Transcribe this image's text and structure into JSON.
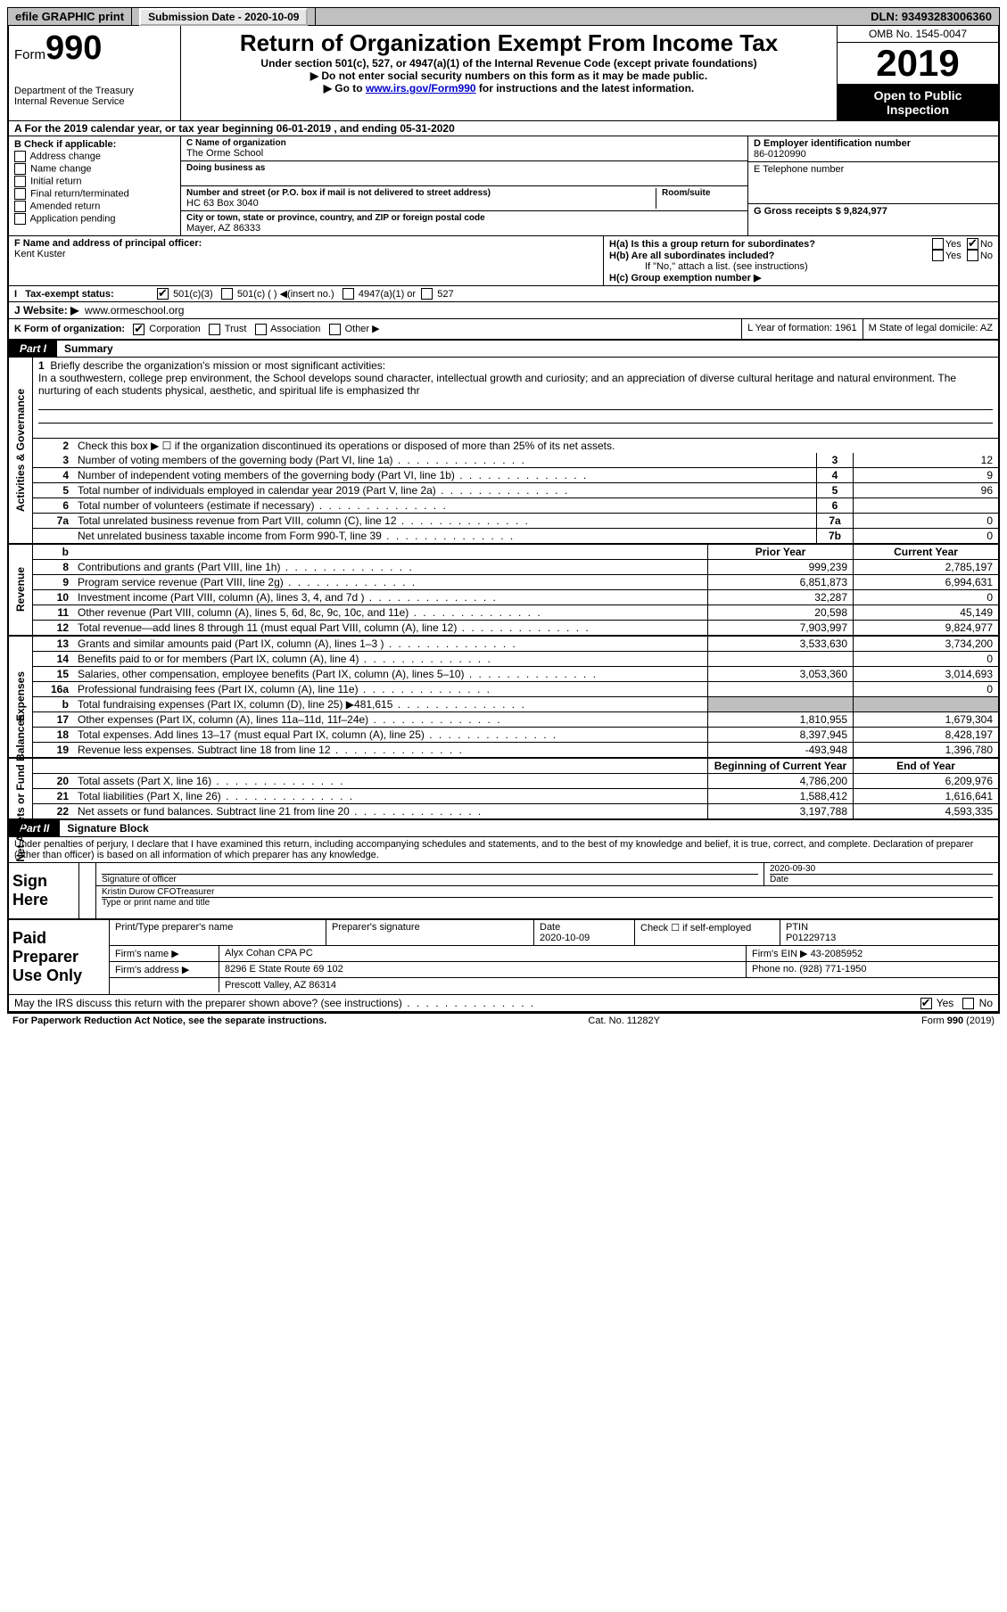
{
  "top": {
    "efile": "efile GRAPHIC print",
    "submission_label": "Submission Date - 2020-10-09",
    "dln": "DLN: 93493283006360"
  },
  "header": {
    "form_prefix": "Form",
    "form_number": "990",
    "dept1": "Department of the Treasury",
    "dept2": "Internal Revenue Service",
    "title": "Return of Organization Exempt From Income Tax",
    "subtitle": "Under section 501(c), 527, or 4947(a)(1) of the Internal Revenue Code (except private foundations)",
    "note1": "▶ Do not enter social security numbers on this form as it may be made public.",
    "note2_pre": "▶ Go to ",
    "note2_link": "www.irs.gov/Form990",
    "note2_post": " for instructions and the latest information.",
    "omb": "OMB No. 1545-0047",
    "year": "2019",
    "open1": "Open to Public",
    "open2": "Inspection"
  },
  "row_a": "A For the 2019 calendar year, or tax year beginning 06-01-2019   , and ending 05-31-2020",
  "col_b": {
    "head": "B Check if applicable:",
    "items": [
      "Address change",
      "Name change",
      "Initial return",
      "Final return/terminated",
      "Amended return",
      "Application pending"
    ]
  },
  "col_c": {
    "name_lbl": "C Name of organization",
    "name": "The Orme School",
    "dba_lbl": "Doing business as",
    "addr_lbl": "Number and street (or P.O. box if mail is not delivered to street address)",
    "addr": "HC 63 Box 3040",
    "room_lbl": "Room/suite",
    "city_lbl": "City or town, state or province, country, and ZIP or foreign postal code",
    "city": "Mayer, AZ  86333"
  },
  "col_de": {
    "d_lbl": "D Employer identification number",
    "d_val": "86-0120990",
    "e_lbl": "E Telephone number",
    "g_lbl": "G Gross receipts $ 9,824,977"
  },
  "sec_fh": {
    "f_lbl": "F  Name and address of principal officer:",
    "f_val": "Kent Kuster",
    "ha": "H(a)  Is this a group return for subordinates?",
    "hb": "H(b)  Are all subordinates included?",
    "hb_note": "If \"No,\" attach a list. (see instructions)",
    "hc": "H(c)  Group exemption number ▶"
  },
  "tax_row": {
    "lbl": "Tax-exempt status:",
    "o1": "501(c)(3)",
    "o2": "501(c) (  ) ◀(insert no.)",
    "o3": "4947(a)(1) or",
    "o4": "527"
  },
  "web_row": {
    "lbl": "J   Website: ▶",
    "val": "www.ormeschool.org"
  },
  "row_k": {
    "k_lbl": "K Form of organization:",
    "opts": [
      "Corporation",
      "Trust",
      "Association",
      "Other ▶"
    ],
    "l": "L Year of formation: 1961",
    "m": "M State of legal domicile: AZ"
  },
  "part1": {
    "tab": "Part I",
    "title": "Summary"
  },
  "mission": {
    "num": "1",
    "lbl": "Briefly describe the organization's mission or most significant activities:",
    "text": "In a southwestern, college prep environment, the School develops sound character, intellectual growth and curiosity; and an appreciation of diverse cultural heritage and natural environment. The nurturing of each students physical, aesthetic, and spiritual life is emphasized thr"
  },
  "line2": "Check this box ▶ ☐  if the organization discontinued its operations or disposed of more than 25% of its net assets.",
  "gov_lines": [
    {
      "n": "3",
      "d": "Number of voting members of the governing body (Part VI, line 1a)",
      "bn": "3",
      "v": "12"
    },
    {
      "n": "4",
      "d": "Number of independent voting members of the governing body (Part VI, line 1b)",
      "bn": "4",
      "v": "9"
    },
    {
      "n": "5",
      "d": "Total number of individuals employed in calendar year 2019 (Part V, line 2a)",
      "bn": "5",
      "v": "96"
    },
    {
      "n": "6",
      "d": "Total number of volunteers (estimate if necessary)",
      "bn": "6",
      "v": ""
    },
    {
      "n": "7a",
      "d": "Total unrelated business revenue from Part VIII, column (C), line 12",
      "bn": "7a",
      "v": "0"
    },
    {
      "n": "",
      "d": "Net unrelated business taxable income from Form 990-T, line 39",
      "bn": "7b",
      "v": "0"
    }
  ],
  "hdr_cols": {
    "prior": "Prior Year",
    "current": "Current Year"
  },
  "rev_lines": [
    {
      "n": "8",
      "d": "Contributions and grants (Part VIII, line 1h)",
      "p": "999,239",
      "c": "2,785,197"
    },
    {
      "n": "9",
      "d": "Program service revenue (Part VIII, line 2g)",
      "p": "6,851,873",
      "c": "6,994,631"
    },
    {
      "n": "10",
      "d": "Investment income (Part VIII, column (A), lines 3, 4, and 7d )",
      "p": "32,287",
      "c": "0"
    },
    {
      "n": "11",
      "d": "Other revenue (Part VIII, column (A), lines 5, 6d, 8c, 9c, 10c, and 11e)",
      "p": "20,598",
      "c": "45,149"
    },
    {
      "n": "12",
      "d": "Total revenue—add lines 8 through 11 (must equal Part VIII, column (A), line 12)",
      "p": "7,903,997",
      "c": "9,824,977"
    }
  ],
  "exp_lines": [
    {
      "n": "13",
      "d": "Grants and similar amounts paid (Part IX, column (A), lines 1–3 )",
      "p": "3,533,630",
      "c": "3,734,200"
    },
    {
      "n": "14",
      "d": "Benefits paid to or for members (Part IX, column (A), line 4)",
      "p": "",
      "c": "0"
    },
    {
      "n": "15",
      "d": "Salaries, other compensation, employee benefits (Part IX, column (A), lines 5–10)",
      "p": "3,053,360",
      "c": "3,014,693"
    },
    {
      "n": "16a",
      "d": "Professional fundraising fees (Part IX, column (A), line 11e)",
      "p": "",
      "c": "0"
    },
    {
      "n": "b",
      "d": "Total fundraising expenses (Part IX, column (D), line 25) ▶481,615",
      "p": "GREY",
      "c": "GREY"
    },
    {
      "n": "17",
      "d": "Other expenses (Part IX, column (A), lines 11a–11d, 11f–24e)",
      "p": "1,810,955",
      "c": "1,679,304"
    },
    {
      "n": "18",
      "d": "Total expenses. Add lines 13–17 (must equal Part IX, column (A), line 25)",
      "p": "8,397,945",
      "c": "8,428,197"
    },
    {
      "n": "19",
      "d": "Revenue less expenses. Subtract line 18 from line 12",
      "p": "-493,948",
      "c": "1,396,780"
    }
  ],
  "hdr_cols2": {
    "begin": "Beginning of Current Year",
    "end": "End of Year"
  },
  "net_lines": [
    {
      "n": "20",
      "d": "Total assets (Part X, line 16)",
      "p": "4,786,200",
      "c": "6,209,976"
    },
    {
      "n": "21",
      "d": "Total liabilities (Part X, line 26)",
      "p": "1,588,412",
      "c": "1,616,641"
    },
    {
      "n": "22",
      "d": "Net assets or fund balances. Subtract line 21 from line 20",
      "p": "3,197,788",
      "c": "4,593,335"
    }
  ],
  "part2": {
    "tab": "Part II",
    "title": "Signature Block"
  },
  "sig_intro": "Under penalties of perjury, I declare that I have examined this return, including accompanying schedules and statements, and to the best of my knowledge and belief, it is true, correct, and complete. Declaration of preparer (other than officer) is based on all information of which preparer has any knowledge.",
  "sign": {
    "lbl": "Sign Here",
    "officer_lbl": "Signature of officer",
    "date_lbl": "Date",
    "date": "2020-09-30",
    "name": "Kristin Durow  CFOTreasurer",
    "name_lbl": "Type or print name and title"
  },
  "paid": {
    "lbl": "Paid Preparer Use Only",
    "h1": "Print/Type preparer's name",
    "h2": "Preparer's signature",
    "h3": "Date",
    "h3v": "2020-10-09",
    "h4": "Check ☐  if self-employed",
    "h5": "PTIN",
    "h5v": "P01229713",
    "firm_lbl": "Firm's name    ▶",
    "firm": "Alyx Cohan CPA PC",
    "ein_lbl": "Firm's EIN ▶",
    "ein": "43-2085952",
    "addr_lbl": "Firm's address ▶",
    "addr1": "8296 E State Route 69 102",
    "addr2": "Prescott Valley, AZ   86314",
    "phone_lbl": "Phone no.",
    "phone": "(928) 771-1950"
  },
  "discuss": "May the IRS discuss this return with the preparer shown above? (see instructions)",
  "footer": {
    "l": "For Paperwork Reduction Act Notice, see the separate instructions.",
    "m": "Cat. No. 11282Y",
    "r": "Form 990 (2019)"
  },
  "vlabels": {
    "gov": "Activities & Governance",
    "rev": "Revenue",
    "exp": "Expenses",
    "net": "Net Assets or Fund Balances"
  },
  "yesno": {
    "yes": "Yes",
    "no": "No"
  }
}
